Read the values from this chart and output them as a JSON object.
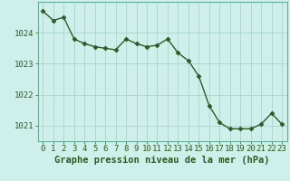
{
  "x": [
    0,
    1,
    2,
    3,
    4,
    5,
    6,
    7,
    8,
    9,
    10,
    11,
    12,
    13,
    14,
    15,
    16,
    17,
    18,
    19,
    20,
    21,
    22,
    23
  ],
  "y": [
    1024.7,
    1024.4,
    1024.5,
    1023.8,
    1023.65,
    1023.55,
    1023.5,
    1023.45,
    1023.8,
    1023.65,
    1023.55,
    1023.6,
    1023.8,
    1023.35,
    1023.1,
    1022.6,
    1021.65,
    1021.1,
    1020.9,
    1020.9,
    1020.9,
    1021.05,
    1021.4,
    1021.05
  ],
  "line_color": "#2d5a27",
  "marker": "D",
  "marker_size": 2.5,
  "background_color": "#cff0ea",
  "grid_color": "#aad4cc",
  "ylabel_ticks": [
    1021,
    1022,
    1023,
    1024
  ],
  "xlabel": "Graphe pression niveau de la mer (hPa)",
  "ylim": [
    1020.5,
    1025.0
  ],
  "xlim": [
    -0.5,
    23.5
  ],
  "label_fontsize": 7.5,
  "tick_fontsize": 6.5,
  "spine_color": "#6aaa99",
  "line_width": 1.0
}
